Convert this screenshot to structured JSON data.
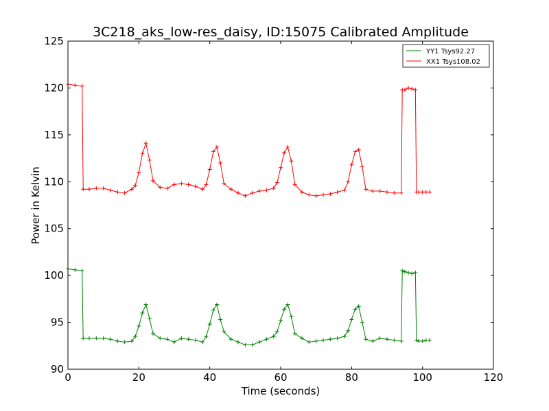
{
  "chart_data": {
    "type": "line",
    "title": "3C218_aks_low-res_daisy, ID:15075 Calibrated Amplitude",
    "xlabel": "Time (seconds)",
    "ylabel": "Power in Kelvin",
    "xlim": [
      0,
      120
    ],
    "ylim": [
      90,
      125
    ],
    "xticks": [
      "0",
      "20",
      "40",
      "60",
      "80",
      "100",
      "120"
    ],
    "yticks": [
      "90",
      "95",
      "100",
      "105",
      "110",
      "115",
      "120",
      "125"
    ],
    "grid": false,
    "legend_position": "top-right",
    "series": [
      {
        "name": "YY1 Tsys92.27",
        "color": "#008000",
        "x": [
          0,
          2,
          4.0,
          4.3,
          6,
          8,
          10,
          12,
          14,
          16,
          18,
          19,
          20,
          21,
          22,
          23,
          24,
          26,
          28,
          30,
          32,
          34,
          36,
          38,
          39,
          40,
          41,
          42,
          43,
          44,
          46,
          48,
          50,
          52,
          54,
          56,
          58,
          59,
          60,
          61,
          62,
          63,
          64,
          66,
          68,
          70,
          72,
          74,
          76,
          78,
          79,
          80,
          81,
          82,
          83,
          84,
          86,
          88,
          90,
          92,
          94.0,
          94.3,
          95,
          96,
          97,
          98.0,
          98.3,
          99,
          100,
          101,
          102
        ],
        "y": [
          100.7,
          100.6,
          100.5,
          93.3,
          93.3,
          93.3,
          93.3,
          93.2,
          93.0,
          92.9,
          93.0,
          93.5,
          94.6,
          96.0,
          96.9,
          95.4,
          93.8,
          93.3,
          93.2,
          92.9,
          93.3,
          93.2,
          93.1,
          92.9,
          93.5,
          94.8,
          96.3,
          96.9,
          95.3,
          94.0,
          93.2,
          92.9,
          92.6,
          92.6,
          92.9,
          93.2,
          93.5,
          94.0,
          95.2,
          96.4,
          96.9,
          95.6,
          93.8,
          93.3,
          92.9,
          93.0,
          93.1,
          93.2,
          93.3,
          93.5,
          94.1,
          95.3,
          96.4,
          96.7,
          95.0,
          93.2,
          93.0,
          93.3,
          93.2,
          93.1,
          93.0,
          100.5,
          100.4,
          100.3,
          100.2,
          100.3,
          93.1,
          93.0,
          93.0,
          93.1,
          93.1
        ]
      },
      {
        "name": "XX1 Tsys108.02",
        "color": "#ff0000",
        "x": [
          0,
          2,
          4.0,
          4.3,
          6,
          8,
          10,
          12,
          14,
          16,
          18,
          19,
          20,
          21,
          22,
          23,
          24,
          26,
          28,
          30,
          32,
          34,
          36,
          38,
          39,
          40,
          41,
          42,
          43,
          44,
          46,
          48,
          50,
          52,
          54,
          56,
          58,
          59,
          60,
          61,
          62,
          63,
          64,
          66,
          68,
          70,
          72,
          74,
          76,
          78,
          79,
          80,
          81,
          82,
          83,
          84,
          86,
          88,
          90,
          92,
          94.0,
          94.3,
          95,
          96,
          97,
          98.0,
          98.3,
          99,
          100,
          101,
          102
        ],
        "y": [
          120.4,
          120.3,
          120.2,
          109.2,
          109.2,
          109.3,
          109.3,
          109.1,
          108.9,
          108.8,
          109.2,
          109.6,
          111.0,
          113.0,
          114.1,
          112.3,
          110.1,
          109.4,
          109.3,
          109.7,
          109.8,
          109.7,
          109.5,
          109.2,
          109.7,
          111.3,
          113.2,
          113.7,
          112.0,
          109.8,
          109.2,
          108.8,
          108.5,
          108.8,
          109.0,
          109.1,
          109.3,
          109.9,
          111.5,
          113.1,
          113.7,
          112.2,
          109.7,
          108.9,
          108.6,
          108.5,
          108.6,
          108.7,
          108.9,
          109.1,
          110.0,
          111.8,
          113.2,
          113.4,
          111.6,
          109.2,
          109.0,
          109.0,
          108.9,
          108.8,
          108.8,
          119.8,
          119.8,
          120.0,
          119.9,
          119.8,
          108.9,
          108.9,
          108.9,
          108.9,
          108.9
        ]
      }
    ]
  }
}
